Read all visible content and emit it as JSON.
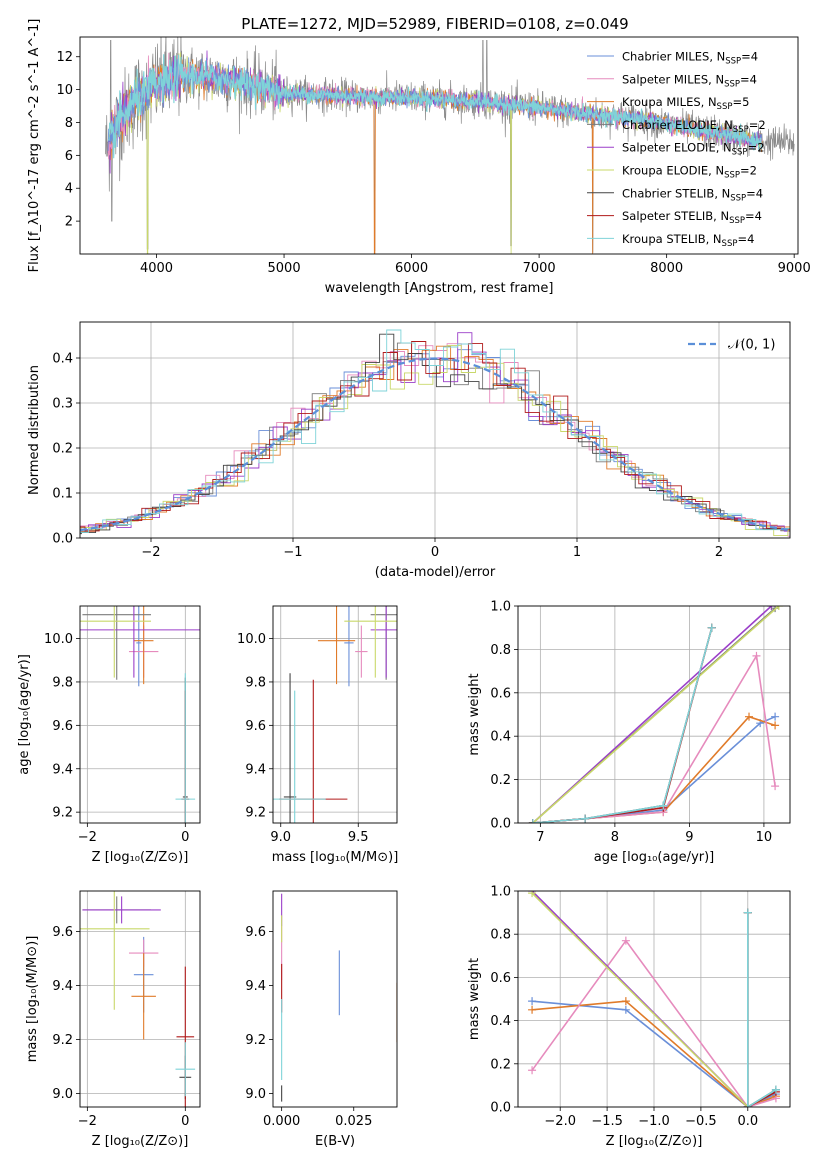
{
  "figure_title": "PLATE=1272, MJD=52989, FIBERID=0108, z=0.049",
  "palette": {
    "chabrier_miles": "#6a8fd8",
    "salpeter_miles": "#e68bbd",
    "kroupa_miles": "#e07b2a",
    "chabrier_elodie": "#7b7b7b",
    "salpeter_elodie": "#9b3fc9",
    "kroupa_elodie": "#c9d86a",
    "chabrier_stelib": "#444444",
    "salpeter_stelib": "#b01a1a",
    "kroupa_stelib": "#7fd3d8",
    "gauss": "#5b8fd8",
    "grid": "#b0b0b0"
  },
  "chart_data": [
    {
      "id": "spectrum",
      "type": "line",
      "xlabel": "wavelength [Angstrom, rest frame]",
      "ylabel": "Flux [f_λ10^-17 erg cm^-2 s^-1 A^-1]",
      "xlim": [
        3400,
        9030
      ],
      "ylim": [
        0,
        13.2
      ],
      "xticks": [
        4000,
        5000,
        6000,
        7000,
        8000,
        9000
      ],
      "yticks": [
        2,
        4,
        6,
        8,
        10,
        12
      ],
      "grid": false,
      "legend_position": "right",
      "legend": [
        {
          "label": "Chabrier MILES, N",
          "sub": "SSP",
          "tail": "=4",
          "color_key": "chabrier_miles"
        },
        {
          "label": "Salpeter MILES, N",
          "sub": "SSP",
          "tail": "=4",
          "color_key": "salpeter_miles"
        },
        {
          "label": "Kroupa MILES, N",
          "sub": "SSP",
          "tail": "=5",
          "color_key": "kroupa_miles"
        },
        {
          "label": "Chabrier ELODIE, N",
          "sub": "SSP",
          "tail": "=2",
          "color_key": "chabrier_elodie"
        },
        {
          "label": "Salpeter ELODIE, N",
          "sub": "SSP",
          "tail": "=2",
          "color_key": "salpeter_elodie"
        },
        {
          "label": "Kroupa ELODIE, N",
          "sub": "SSP",
          "tail": "=2",
          "color_key": "kroupa_elodie"
        },
        {
          "label": "Chabrier STELIB, N",
          "sub": "SSP",
          "tail": "=4",
          "color_key": "chabrier_stelib"
        },
        {
          "label": "Salpeter STELIB, N",
          "sub": "SSP",
          "tail": "=4",
          "color_key": "salpeter_stelib"
        },
        {
          "label": "Kroupa STELIB, N",
          "sub": "SSP",
          "tail": "=4",
          "color_key": "kroupa_stelib"
        }
      ],
      "continuum": [
        [
          3620,
          6.5
        ],
        [
          3700,
          8.0
        ],
        [
          3850,
          9.5
        ],
        [
          4000,
          10.3
        ],
        [
          4200,
          10.9
        ],
        [
          4400,
          10.8
        ],
        [
          4600,
          10.5
        ],
        [
          4800,
          10.2
        ],
        [
          5000,
          9.8
        ],
        [
          5500,
          9.6
        ],
        [
          6000,
          9.5
        ],
        [
          6500,
          9.3
        ],
        [
          7000,
          8.9
        ],
        [
          7400,
          8.5
        ],
        [
          7800,
          8.2
        ],
        [
          8200,
          7.6
        ],
        [
          8500,
          7.2
        ],
        [
          8750,
          6.8
        ]
      ],
      "data_range": [
        3600,
        9000
      ],
      "model_range": [
        3620,
        8750
      ],
      "dips": [
        [
          3650,
          2.0
        ],
        [
          3930,
          0.3
        ],
        [
          5710,
          0.2
        ],
        [
          6780,
          0.5
        ],
        [
          7420,
          0.1
        ]
      ],
      "spikes": [
        [
          3640,
          13.0
        ],
        [
          6560,
          13.0
        ],
        [
          6590,
          13.0
        ]
      ]
    },
    {
      "id": "residuals",
      "type": "histogram",
      "xlabel": "(data-model)/error",
      "ylabel": "Normed distribution",
      "xlim": [
        -2.5,
        2.5
      ],
      "ylim": [
        0,
        0.48
      ],
      "xticks": [
        -2,
        -1,
        0,
        1,
        2
      ],
      "yticks": [
        0.0,
        0.1,
        0.2,
        0.3,
        0.4
      ],
      "grid": true,
      "bin_width": 0.1,
      "legend": [
        {
          "label": "𝒩(0, 1)",
          "style": "dashed",
          "color_key": "gauss"
        }
      ],
      "legend_position": "upper right"
    },
    {
      "id": "age_vs_Z",
      "type": "scatter_errorbar",
      "xlabel": "Z [log₁₀(Z/Z⊙)]",
      "ylabel": "age  [log₁₀(age/yr)]",
      "xlim": [
        -2.15,
        0.3
      ],
      "ylim": [
        9.15,
        10.15
      ],
      "xticks": [
        -2,
        0
      ],
      "yticks": [
        9.2,
        9.4,
        9.6,
        9.8,
        10.0
      ],
      "grid": true,
      "points": [
        {
          "x": -0.95,
          "y": 9.98,
          "xerr": 0.05,
          "yerr": 0.2,
          "color_key": "chabrier_miles"
        },
        {
          "x": -0.85,
          "y": 9.94,
          "xerr": 0.3,
          "yerr": 0.12,
          "color_key": "salpeter_miles"
        },
        {
          "x": -0.85,
          "y": 9.99,
          "xerr": 0.2,
          "yerr": 0.2,
          "color_key": "kroupa_miles"
        },
        {
          "x": -1.4,
          "y": 10.11,
          "xerr": 0.7,
          "yerr": 0.3,
          "color_key": "chabrier_elodie"
        },
        {
          "x": -1.05,
          "y": 10.04,
          "xerr": 2.2,
          "yerr": 0.22,
          "color_key": "salpeter_elodie"
        },
        {
          "x": -1.45,
          "y": 10.08,
          "xerr": 0.75,
          "yerr": 0.26,
          "color_key": "kroupa_elodie"
        },
        {
          "x": 0.0,
          "y": 9.27,
          "xerr": 0.05,
          "yerr": 0.55,
          "color_key": "chabrier_stelib"
        },
        {
          "x": 0.0,
          "y": 9.26,
          "xerr": 0.08,
          "yerr": 0.5,
          "color_key": "salpeter_stelib"
        },
        {
          "x": 0.0,
          "y": 9.26,
          "xerr": 0.2,
          "yerr": 0.58,
          "color_key": "kroupa_stelib"
        }
      ]
    },
    {
      "id": "age_vs_mass",
      "type": "scatter_errorbar",
      "xlabel": "mass [log₁₀(M/M⊙)]",
      "ylabel": "",
      "xlim": [
        8.95,
        9.75
      ],
      "ylim": [
        9.15,
        10.15
      ],
      "xticks": [
        9.0,
        9.5
      ],
      "yticks": [
        9.2,
        9.4,
        9.6,
        9.8,
        10.0
      ],
      "grid": true,
      "points": [
        {
          "x": 9.44,
          "y": 9.98,
          "xerr": 0.03,
          "yerr": 0.2,
          "color_key": "chabrier_miles"
        },
        {
          "x": 9.52,
          "y": 9.94,
          "xerr": 0.04,
          "yerr": 0.12,
          "color_key": "salpeter_miles"
        },
        {
          "x": 9.36,
          "y": 9.99,
          "xerr": 0.12,
          "yerr": 0.2,
          "color_key": "kroupa_miles"
        },
        {
          "x": 9.68,
          "y": 10.11,
          "xerr": 0.1,
          "yerr": 0.3,
          "color_key": "chabrier_elodie"
        },
        {
          "x": 9.68,
          "y": 10.04,
          "xerr": 0.1,
          "yerr": 0.22,
          "color_key": "salpeter_elodie"
        },
        {
          "x": 9.61,
          "y": 10.08,
          "xerr": 0.2,
          "yerr": 0.26,
          "color_key": "kroupa_elodie"
        },
        {
          "x": 9.06,
          "y": 9.27,
          "xerr": 0.04,
          "yerr": 0.57,
          "color_key": "chabrier_stelib"
        },
        {
          "x": 9.21,
          "y": 9.26,
          "xerr": 0.22,
          "yerr": 0.55,
          "color_key": "salpeter_stelib"
        },
        {
          "x": 9.09,
          "y": 9.26,
          "xerr": 0.2,
          "yerr": 0.5,
          "color_key": "kroupa_stelib"
        }
      ]
    },
    {
      "id": "weight_vs_age",
      "type": "line",
      "xlabel": "age  [log₁₀(age/yr)]",
      "ylabel": "mass weight",
      "xlim": [
        6.7,
        10.35
      ],
      "ylim": [
        0,
        1.0
      ],
      "xticks": [
        7,
        8,
        9,
        10
      ],
      "yticks": [
        0.0,
        0.2,
        0.4,
        0.6,
        0.8,
        1.0
      ],
      "grid": true,
      "series": [
        {
          "color_key": "chabrier_miles",
          "x": [
            6.9,
            7.6,
            8.65,
            9.95,
            10.15
          ],
          "y": [
            0.0,
            0.02,
            0.06,
            0.46,
            0.49
          ]
        },
        {
          "color_key": "kroupa_miles",
          "x": [
            6.9,
            7.6,
            8.65,
            9.8,
            10.15
          ],
          "y": [
            0.0,
            0.02,
            0.05,
            0.49,
            0.45
          ]
        },
        {
          "color_key": "salpeter_miles",
          "x": [
            6.9,
            7.6,
            8.65,
            9.9,
            10.15
          ],
          "y": [
            0.0,
            0.02,
            0.05,
            0.77,
            0.17
          ]
        },
        {
          "color_key": "salpeter_elodie",
          "x": [
            6.9,
            10.1
          ],
          "y": [
            0.0,
            1.0
          ]
        },
        {
          "color_key": "chabrier_elodie",
          "x": [
            6.9,
            10.15
          ],
          "y": [
            0.0,
            0.99
          ]
        },
        {
          "color_key": "kroupa_elodie",
          "x": [
            6.9,
            10.2
          ],
          "y": [
            0.0,
            1.0
          ]
        },
        {
          "color_key": "chabrier_stelib",
          "x": [
            6.9,
            7.6,
            8.65,
            9.3
          ],
          "y": [
            0.0,
            0.02,
            0.08,
            0.9
          ]
        },
        {
          "color_key": "salpeter_stelib",
          "x": [
            6.9,
            7.6,
            8.65,
            9.3
          ],
          "y": [
            0.0,
            0.02,
            0.07,
            0.9
          ]
        },
        {
          "color_key": "kroupa_stelib",
          "x": [
            6.9,
            7.6,
            8.65,
            9.3
          ],
          "y": [
            0.0,
            0.02,
            0.08,
            0.9
          ]
        }
      ]
    },
    {
      "id": "mass_vs_Z",
      "type": "scatter_errorbar",
      "xlabel": "Z [log₁₀(Z/Z⊙)]",
      "ylabel": "mass [log₁₀(M/M⊙)]",
      "xlim": [
        -2.15,
        0.3
      ],
      "ylim": [
        8.95,
        9.75
      ],
      "xticks": [
        -2,
        0
      ],
      "yticks": [
        9.0,
        9.2,
        9.4,
        9.6
      ],
      "grid": true,
      "points": [
        {
          "x": -0.85,
          "y": 9.44,
          "xerr": 0.2,
          "yerr": 0.14,
          "color_key": "chabrier_miles"
        },
        {
          "x": -0.85,
          "y": 9.52,
          "xerr": 0.3,
          "yerr": 0.05,
          "color_key": "salpeter_miles"
        },
        {
          "x": -0.85,
          "y": 9.36,
          "xerr": 0.25,
          "yerr": 0.16,
          "color_key": "kroupa_miles"
        },
        {
          "x": -1.4,
          "y": 9.68,
          "xerr": 0.7,
          "yerr": 0.05,
          "color_key": "chabrier_elodie"
        },
        {
          "x": -1.3,
          "y": 9.68,
          "xerr": 0.8,
          "yerr": 0.05,
          "color_key": "salpeter_elodie"
        },
        {
          "x": -1.45,
          "y": 9.61,
          "xerr": 0.72,
          "yerr": 0.3,
          "color_key": "kroupa_elodie"
        },
        {
          "x": 0.0,
          "y": 9.06,
          "xerr": 0.12,
          "yerr": 0.08,
          "color_key": "chabrier_stelib"
        },
        {
          "x": 0.0,
          "y": 9.21,
          "xerr": 0.18,
          "yerr": 0.26,
          "color_key": "salpeter_stelib"
        },
        {
          "x": 0.0,
          "y": 9.09,
          "xerr": 0.2,
          "yerr": 0.1,
          "color_key": "kroupa_stelib"
        }
      ]
    },
    {
      "id": "mass_vs_EBV",
      "type": "scatter_errorbar",
      "xlabel": "E(B-V)",
      "ylabel": "",
      "xlim": [
        -0.003,
        0.04
      ],
      "ylim": [
        8.95,
        9.75
      ],
      "xticks": [
        0.0,
        0.025
      ],
      "yticks": [
        9.0,
        9.2,
        9.4,
        9.6
      ],
      "grid": false,
      "points": [
        {
          "x": 0.02,
          "y": 9.41,
          "xerr": 0.0,
          "yerr": 0.12,
          "color_key": "chabrier_miles"
        },
        {
          "x": 0.04,
          "y": 9.3,
          "xerr": 0.0,
          "yerr": 0.11,
          "color_key": "kroupa_miles"
        },
        {
          "x": 0.0,
          "y": 9.52,
          "xerr": 0.0,
          "yerr": 0.1,
          "color_key": "salpeter_miles"
        },
        {
          "x": 0.0,
          "y": 9.68,
          "xerr": 0.0,
          "yerr": 0.06,
          "color_key": "salpeter_elodie"
        },
        {
          "x": 0.0,
          "y": 9.61,
          "xerr": 0.0,
          "yerr": 0.05,
          "color_key": "kroupa_elodie"
        },
        {
          "x": 0.0,
          "y": 9.39,
          "xerr": 0.0,
          "yerr": 0.09,
          "color_key": "salpeter_stelib"
        },
        {
          "x": 0.0,
          "y": 9.2,
          "xerr": 0.0,
          "yerr": 0.15,
          "color_key": "kroupa_stelib"
        },
        {
          "x": 0.0,
          "y": 9.0,
          "xerr": 0.0,
          "yerr": 0.03,
          "color_key": "chabrier_stelib"
        }
      ]
    },
    {
      "id": "weight_vs_Z",
      "type": "line",
      "xlabel": "Z [log₁₀(Z/Z⊙)]",
      "ylabel": "mass weight",
      "xlim": [
        -2.45,
        0.45
      ],
      "ylim": [
        0,
        1.0
      ],
      "xticks": [
        -2.0,
        -1.5,
        -1.0,
        -0.5,
        0.0
      ],
      "yticks": [
        0.0,
        0.2,
        0.4,
        0.6,
        0.8,
        1.0
      ],
      "grid": true,
      "series": [
        {
          "color_key": "chabrier_miles",
          "x": [
            -2.3,
            -1.3,
            0.0,
            0.3
          ],
          "y": [
            0.49,
            0.45,
            0.0,
            0.06
          ]
        },
        {
          "color_key": "kroupa_miles",
          "x": [
            -2.3,
            -1.3,
            0.0,
            0.3
          ],
          "y": [
            0.45,
            0.49,
            0.0,
            0.05
          ]
        },
        {
          "color_key": "salpeter_miles",
          "x": [
            -2.3,
            -1.3,
            0.0,
            0.3
          ],
          "y": [
            0.17,
            0.77,
            0.0,
            0.04
          ]
        },
        {
          "color_key": "salpeter_elodie",
          "x": [
            -2.3,
            0.0
          ],
          "y": [
            1.0,
            0.0
          ]
        },
        {
          "color_key": "kroupa_elodie",
          "x": [
            -2.3,
            0.0
          ],
          "y": [
            0.99,
            0.0
          ]
        },
        {
          "color_key": "chabrier_stelib",
          "x": [
            0.0,
            0.0,
            0.3
          ],
          "y": [
            0.9,
            0.0,
            0.08
          ]
        },
        {
          "color_key": "salpeter_stelib",
          "x": [
            0.0,
            0.0,
            0.3
          ],
          "y": [
            0.9,
            0.0,
            0.07
          ]
        },
        {
          "color_key": "kroupa_stelib",
          "x": [
            0.0,
            0.0,
            0.3
          ],
          "y": [
            0.9,
            0.0,
            0.08
          ]
        }
      ]
    }
  ]
}
